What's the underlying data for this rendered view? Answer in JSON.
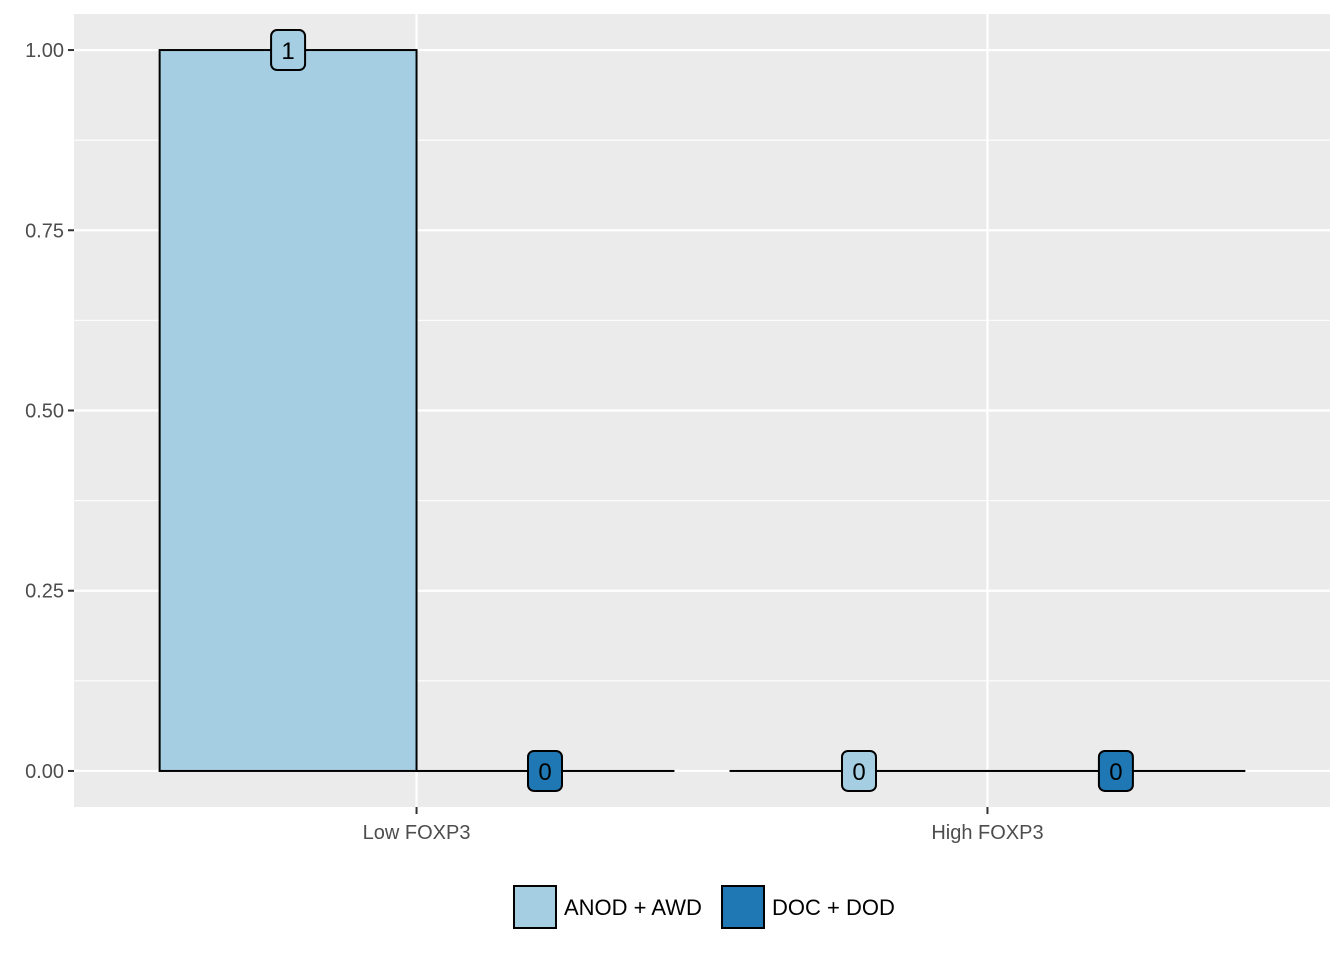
{
  "chart_data": {
    "type": "bar",
    "title": "",
    "xlabel": "",
    "ylabel": "",
    "categories": [
      "Low FOXP3",
      "High FOXP3"
    ],
    "series": [
      {
        "name": "ANOD + AWD",
        "values": [
          1,
          0
        ],
        "color": "#a6cee3"
      },
      {
        "name": "DOC + DOD",
        "values": [
          0,
          0
        ],
        "color": "#1f78b4"
      }
    ],
    "data_labels": [
      [
        "1",
        "0"
      ],
      [
        "0",
        "0"
      ]
    ],
    "ylim": [
      -0.05,
      1.05
    ],
    "y_ticks": [
      "0.00",
      "0.25",
      "0.50",
      "0.75",
      "1.00"
    ],
    "y_tick_values": [
      0,
      0.25,
      0.5,
      0.75,
      1
    ],
    "grid": true,
    "legend_position": "bottom",
    "panel_background": "#ebebeb",
    "grid_color": "#ffffff"
  }
}
